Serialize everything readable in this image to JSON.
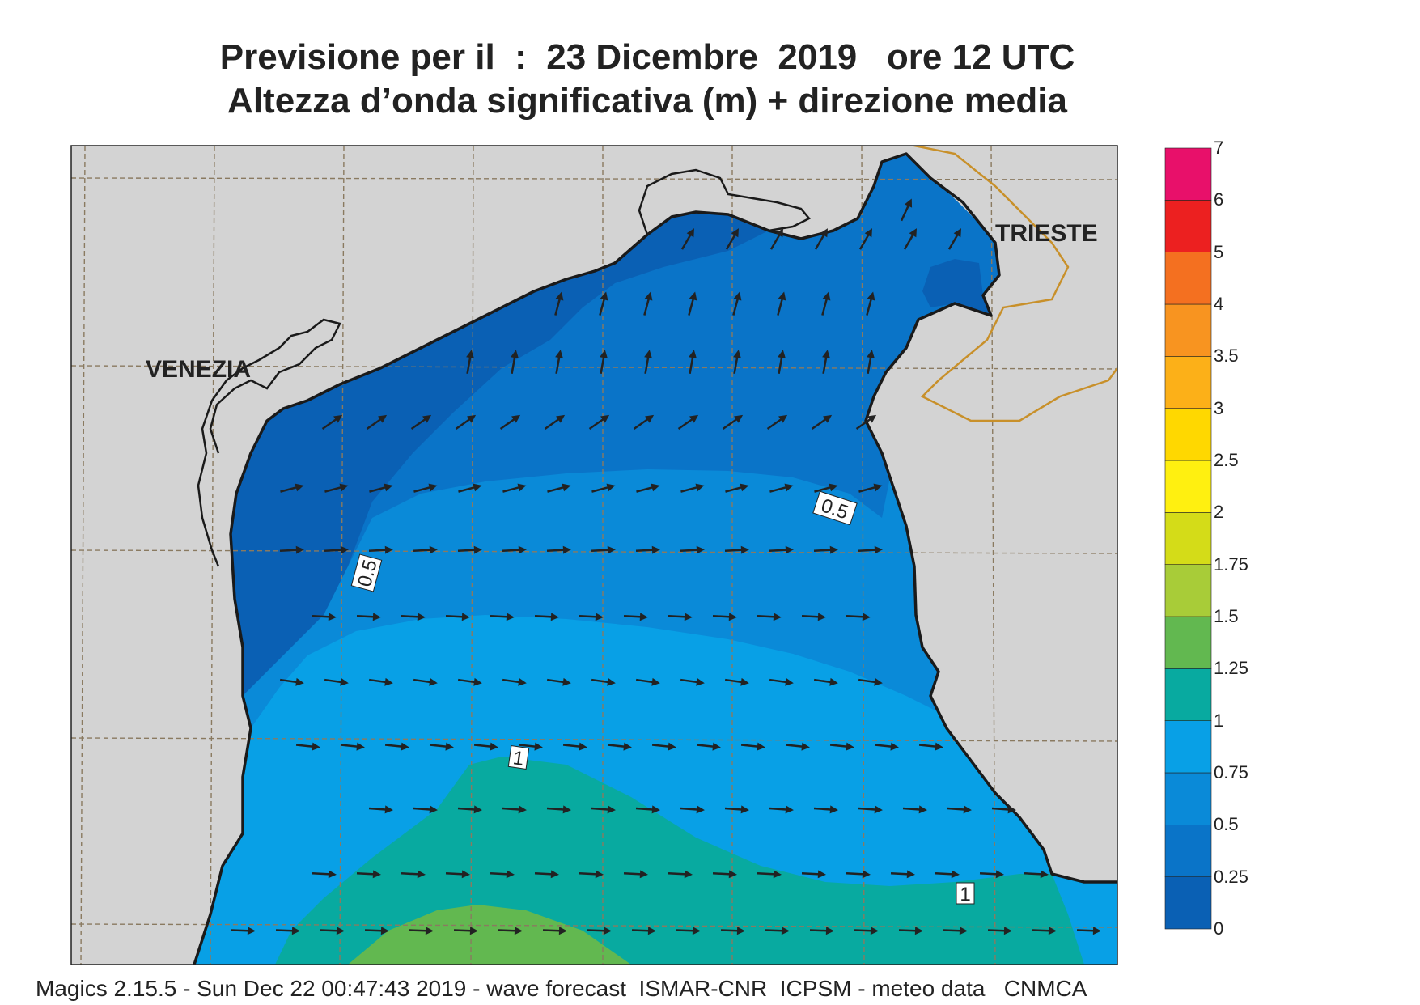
{
  "title": {
    "line1": "Previsione per il  :  23 Dicembre  2019   ore 12 UTC",
    "line2": "Altezza d’onda significativa (m) + direzione media"
  },
  "footer": "Magics 2.15.5 - Sun Dec 22 00:47:43 2019 - wave forecast  ISMAR-CNR  ICPSM - meteo data   CNMCA",
  "cities": {
    "venezia": "VENEZIA",
    "trieste": "TRIESTE"
  },
  "contour_labels": [
    "0.5",
    "0.5",
    "1",
    "1"
  ],
  "colorbar": {
    "levels": [
      "0",
      "0.25",
      "0.5",
      "0.75",
      "1",
      "1.25",
      "1.5",
      "1.75",
      "2",
      "2.5",
      "3",
      "3.5",
      "4",
      "5",
      "6",
      "7"
    ],
    "colors": [
      "#0a60b4",
      "#0a74c8",
      "#0a8ad8",
      "#08a0e6",
      "#08aaa0",
      "#62b850",
      "#a8cc38",
      "#d4dc18",
      "#fff010",
      "#ffd800",
      "#fcb018",
      "#f89420",
      "#f47020",
      "#ec2020",
      "#e8106a"
    ]
  },
  "colors": {
    "land": "#d3d3d3",
    "sea_0_025": "#0a60b4",
    "sea_025_05": "#0a74c8",
    "sea_05_075": "#0a8ad8",
    "sea_075_1": "#08a0e6",
    "sea_1_125": "#08aaa0",
    "sea_125_15": "#62b850",
    "border": "#c8902a",
    "grid": "#8a7a60",
    "arrow": "#222222"
  }
}
